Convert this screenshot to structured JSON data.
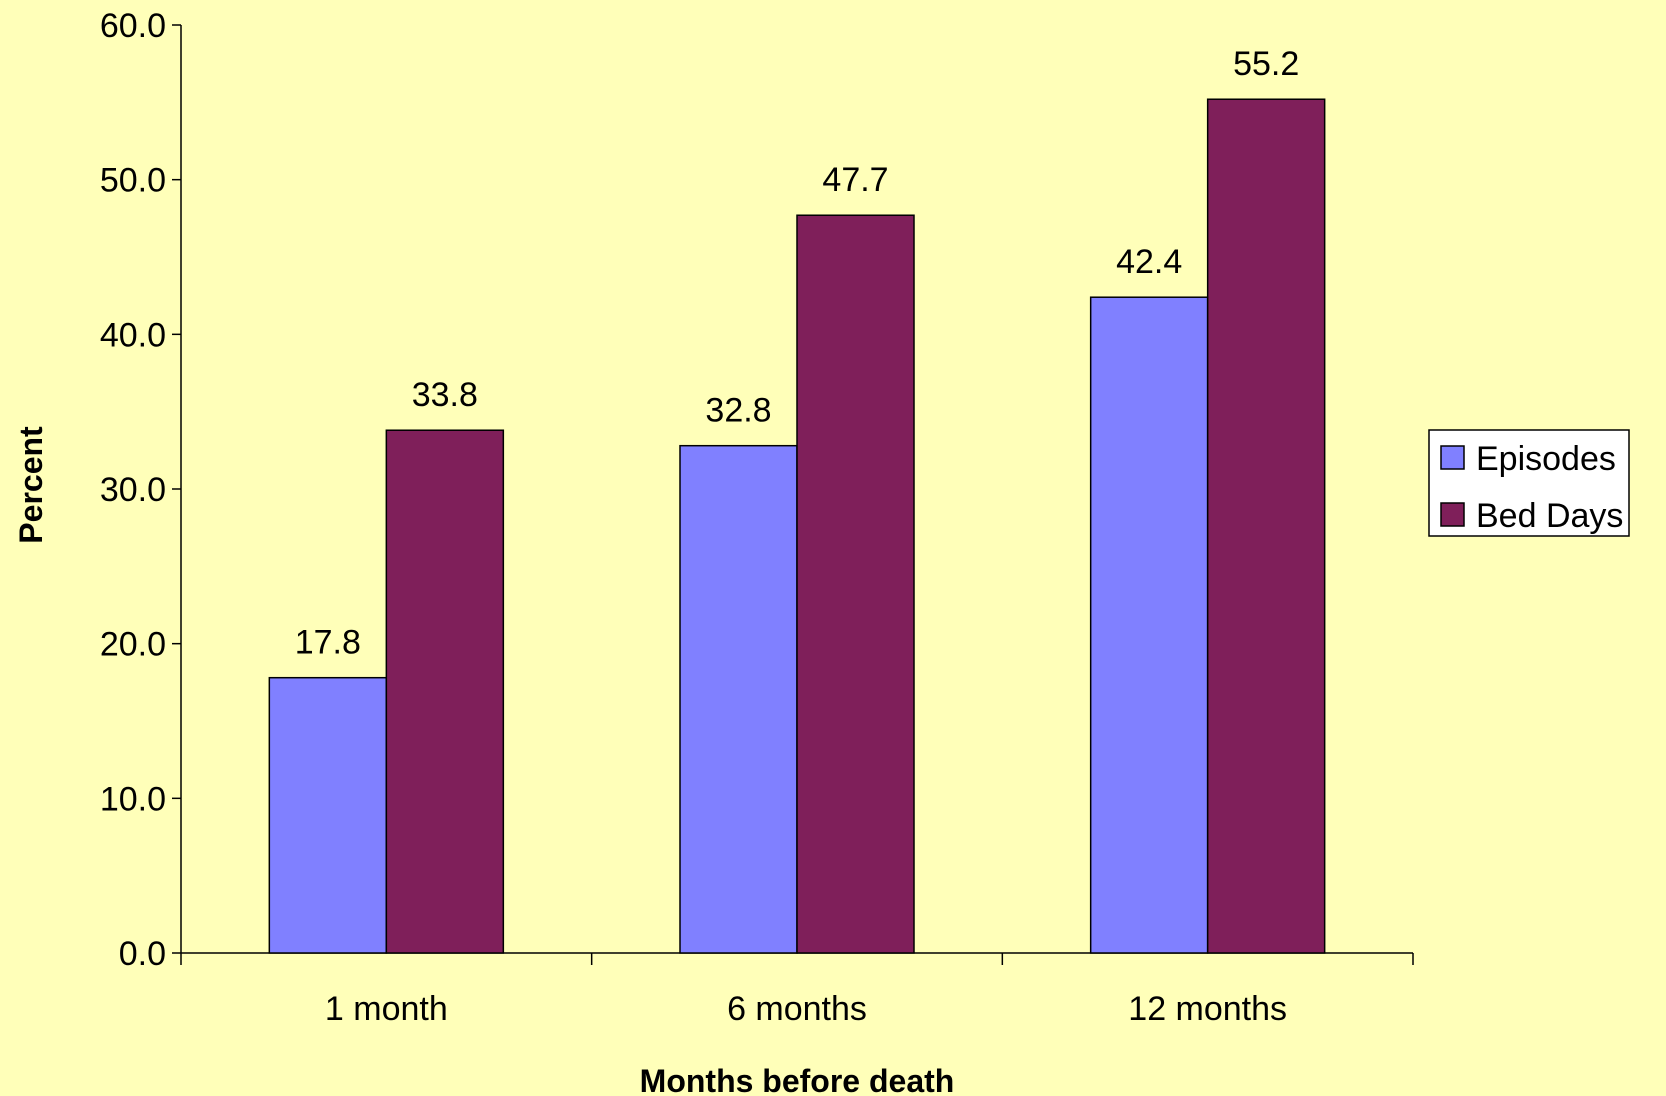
{
  "chart_data": {
    "type": "bar",
    "title": "",
    "xlabel": "Months before death",
    "ylabel": "Percent",
    "categories": [
      "1 month",
      "6 months",
      "12 months"
    ],
    "series": [
      {
        "name": "Episodes",
        "values": [
          17.8,
          32.8,
          42.4
        ],
        "color": "#8080ff"
      },
      {
        "name": "Bed Days",
        "values": [
          33.8,
          47.7,
          55.2
        ],
        "color": "#7f1f5a"
      }
    ],
    "ylim": [
      0,
      60
    ],
    "yticks": [
      "0.0",
      "10.0",
      "20.0",
      "30.0",
      "40.0",
      "50.0",
      "60.0"
    ],
    "data_labels": [
      [
        "17.8",
        "32.8",
        "42.4"
      ],
      [
        "33.8",
        "47.7",
        "55.2"
      ]
    ],
    "grid": false,
    "legend": "right"
  },
  "colors": {
    "background": "#ffffb9",
    "axis": "#000000"
  }
}
